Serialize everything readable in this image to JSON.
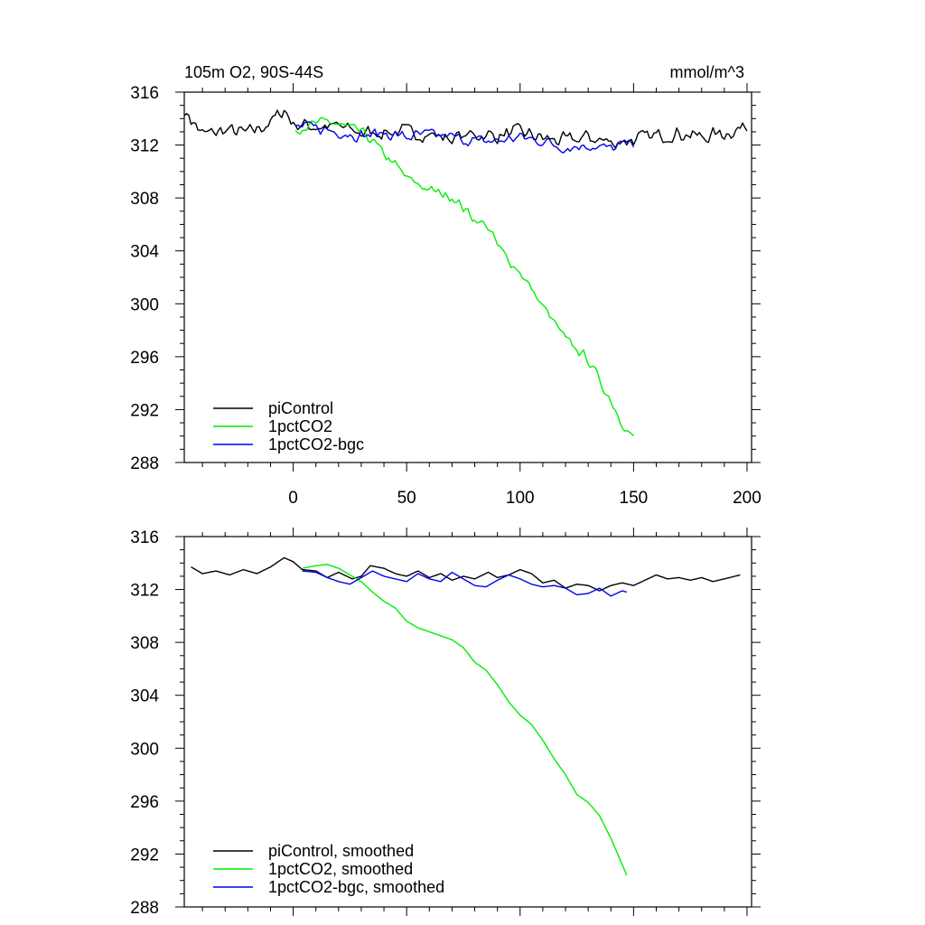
{
  "chart_data": [
    {
      "type": "line",
      "title_left": "105m O2, 90S-44S",
      "title_right": "mmol/m^3",
      "xlim": [
        -48,
        202
      ],
      "ylim": [
        288,
        316
      ],
      "yticks": [
        288,
        292,
        296,
        300,
        304,
        308,
        312,
        316
      ],
      "xticks": [
        0,
        50,
        100,
        150,
        200
      ],
      "xtick_labels": [
        "0",
        "50",
        "100",
        "150",
        "200"
      ],
      "grid": false,
      "legend_position": "bottom-left",
      "series": [
        {
          "name": "piControl",
          "color": "#000000",
          "x_start": -48,
          "x_end": 200,
          "points": [
            [
              -48,
              314.6
            ],
            [
              -40,
              312.8
            ],
            [
              -30,
              313.1
            ],
            [
              -20,
              312.9
            ],
            [
              -10,
              313.7
            ],
            [
              -4,
              314.7
            ],
            [
              0,
              313.6
            ],
            [
              10,
              313.4
            ],
            [
              20,
              313.4
            ],
            [
              30,
              312.9
            ],
            [
              40,
              313.0
            ],
            [
              50,
              313.0
            ],
            [
              60,
              312.8
            ],
            [
              70,
              312.5
            ],
            [
              80,
              312.8
            ],
            [
              90,
              312.7
            ],
            [
              100,
              313.0
            ],
            [
              110,
              312.5
            ],
            [
              120,
              312.3
            ],
            [
              130,
              312.6
            ],
            [
              140,
              312.2
            ],
            [
              150,
              312.4
            ],
            [
              160,
              312.7
            ],
            [
              170,
              312.9
            ],
            [
              180,
              312.6
            ],
            [
              190,
              312.9
            ],
            [
              200,
              313.4
            ]
          ],
          "noise": 0.7
        },
        {
          "name": "1pctCO2",
          "color": "#00ee00",
          "x_start": 1,
          "x_end": 150,
          "points": [
            [
              1,
              313.2
            ],
            [
              15,
              313.8
            ],
            [
              30,
              313.0
            ],
            [
              35,
              312.3
            ],
            [
              40,
              311.3
            ],
            [
              45,
              310.5
            ],
            [
              50,
              309.5
            ],
            [
              60,
              308.6
            ],
            [
              70,
              308.1
            ],
            [
              80,
              306.4
            ],
            [
              86,
              305.8
            ],
            [
              90,
              304.4
            ],
            [
              95,
              303.3
            ],
            [
              100,
              302.4
            ],
            [
              110,
              299.8
            ],
            [
              115,
              298.6
            ],
            [
              120,
              297.3
            ],
            [
              130,
              295.8
            ],
            [
              135,
              294.2
            ],
            [
              140,
              292.7
            ],
            [
              145,
              291.0
            ],
            [
              150,
              289.8
            ]
          ],
          "noise": 0.45
        },
        {
          "name": "1pctCO2-bgc",
          "color": "#0000ee",
          "x_start": 1,
          "x_end": 150,
          "points": [
            [
              1,
              313.4
            ],
            [
              10,
              313.3
            ],
            [
              20,
              313.0
            ],
            [
              30,
              312.7
            ],
            [
              40,
              312.9
            ],
            [
              50,
              312.6
            ],
            [
              60,
              312.8
            ],
            [
              70,
              312.6
            ],
            [
              80,
              312.3
            ],
            [
              90,
              312.3
            ],
            [
              100,
              312.6
            ],
            [
              110,
              312.3
            ],
            [
              120,
              311.8
            ],
            [
              130,
              312.0
            ],
            [
              140,
              311.7
            ],
            [
              150,
              312.3
            ]
          ],
          "noise": 0.55
        }
      ]
    },
    {
      "type": "line",
      "title_left": "",
      "title_right": "",
      "xlim": [
        -48,
        202
      ],
      "ylim": [
        288,
        316
      ],
      "yticks": [
        288,
        292,
        296,
        300,
        304,
        308,
        312,
        316
      ],
      "xticks": [
        0,
        50,
        100,
        150,
        200
      ],
      "xtick_labels": [],
      "grid": false,
      "legend_position": "bottom-left",
      "series": [
        {
          "name": "piControl, smoothed",
          "color": "#000000",
          "x_start": -45,
          "x_end": 197,
          "points": [
            [
              -45,
              313.7
            ],
            [
              -40,
              313.2
            ],
            [
              -34,
              313.4
            ],
            [
              -28,
              313.1
            ],
            [
              -22,
              313.5
            ],
            [
              -16,
              313.2
            ],
            [
              -10,
              313.7
            ],
            [
              -4,
              314.4
            ],
            [
              0,
              314.1
            ],
            [
              4,
              313.5
            ],
            [
              10,
              313.4
            ],
            [
              15,
              312.9
            ],
            [
              20,
              313.3
            ],
            [
              26,
              312.8
            ],
            [
              30,
              313.0
            ],
            [
              34,
              313.8
            ],
            [
              40,
              313.6
            ],
            [
              45,
              313.2
            ],
            [
              50,
              313.0
            ],
            [
              55,
              313.4
            ],
            [
              60,
              312.9
            ],
            [
              65,
              313.2
            ],
            [
              70,
              312.7
            ],
            [
              75,
              313.0
            ],
            [
              80,
              312.8
            ],
            [
              86,
              313.3
            ],
            [
              90,
              312.9
            ],
            [
              95,
              313.1
            ],
            [
              100,
              313.5
            ],
            [
              105,
              313.2
            ],
            [
              110,
              312.5
            ],
            [
              115,
              312.7
            ],
            [
              120,
              312.1
            ],
            [
              125,
              312.4
            ],
            [
              130,
              312.3
            ],
            [
              135,
              311.9
            ],
            [
              140,
              312.3
            ],
            [
              145,
              312.5
            ],
            [
              150,
              312.3
            ],
            [
              155,
              312.7
            ],
            [
              160,
              313.1
            ],
            [
              165,
              312.8
            ],
            [
              170,
              312.9
            ],
            [
              175,
              312.7
            ],
            [
              180,
              312.9
            ],
            [
              185,
              312.6
            ],
            [
              190,
              312.8
            ],
            [
              197,
              313.1
            ]
          ],
          "noise": 0
        },
        {
          "name": "1pctCO2, smoothed",
          "color": "#00ee00",
          "x_start": 4,
          "x_end": 147,
          "points": [
            [
              4,
              313.6
            ],
            [
              10,
              313.8
            ],
            [
              15,
              313.9
            ],
            [
              20,
              313.6
            ],
            [
              25,
              313.1
            ],
            [
              30,
              312.6
            ],
            [
              35,
              311.8
            ],
            [
              40,
              311.1
            ],
            [
              45,
              310.6
            ],
            [
              50,
              309.6
            ],
            [
              55,
              309.1
            ],
            [
              60,
              308.8
            ],
            [
              65,
              308.5
            ],
            [
              70,
              308.2
            ],
            [
              75,
              307.6
            ],
            [
              80,
              306.5
            ],
            [
              85,
              305.9
            ],
            [
              90,
              304.8
            ],
            [
              95,
              303.5
            ],
            [
              100,
              302.5
            ],
            [
              105,
              301.8
            ],
            [
              110,
              300.6
            ],
            [
              115,
              299.2
            ],
            [
              120,
              298.0
            ],
            [
              125,
              296.5
            ],
            [
              130,
              295.9
            ],
            [
              135,
              294.9
            ],
            [
              140,
              293.2
            ],
            [
              145,
              291.2
            ],
            [
              147,
              290.4
            ]
          ],
          "noise": 0
        },
        {
          "name": "1pctCO2-bgc, smoothed",
          "color": "#0000ee",
          "x_start": 4,
          "x_end": 147,
          "points": [
            [
              4,
              313.4
            ],
            [
              10,
              313.3
            ],
            [
              15,
              312.9
            ],
            [
              20,
              312.6
            ],
            [
              25,
              312.4
            ],
            [
              30,
              312.9
            ],
            [
              35,
              313.4
            ],
            [
              40,
              313.0
            ],
            [
              45,
              312.8
            ],
            [
              50,
              312.6
            ],
            [
              55,
              313.2
            ],
            [
              60,
              312.8
            ],
            [
              65,
              312.6
            ],
            [
              70,
              313.3
            ],
            [
              75,
              312.8
            ],
            [
              80,
              312.3
            ],
            [
              85,
              312.2
            ],
            [
              90,
              312.7
            ],
            [
              95,
              313.1
            ],
            [
              100,
              312.8
            ],
            [
              105,
              312.4
            ],
            [
              110,
              312.2
            ],
            [
              115,
              312.3
            ],
            [
              120,
              312.1
            ],
            [
              125,
              311.6
            ],
            [
              130,
              311.7
            ],
            [
              135,
              312.1
            ],
            [
              140,
              311.5
            ],
            [
              145,
              311.9
            ],
            [
              147,
              311.8
            ]
          ],
          "noise": 0
        }
      ]
    }
  ]
}
